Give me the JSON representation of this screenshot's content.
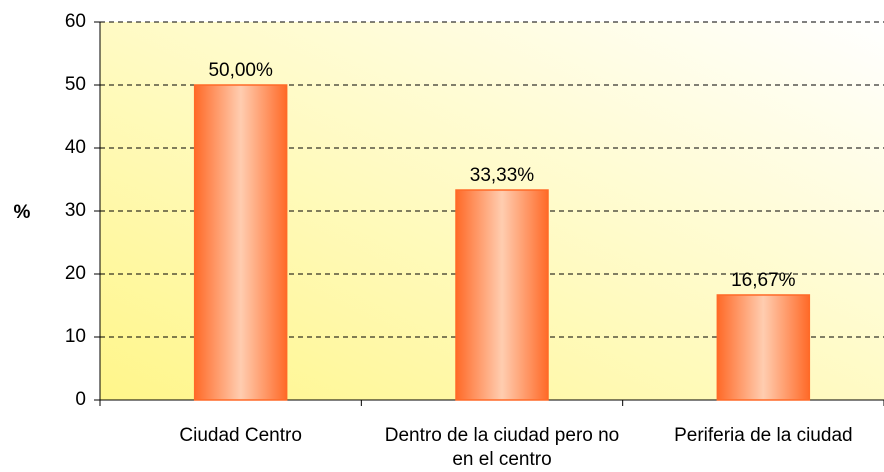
{
  "chart_data": {
    "type": "bar",
    "ylabel": "%",
    "categories": [
      "Ciudad Centro",
      "Dentro de la ciudad pero no en el centro",
      "Periferia de la ciudad"
    ],
    "values": [
      50,
      33.33,
      16.67
    ],
    "value_labels": [
      "50,00%",
      "33,33%",
      "16,67%"
    ],
    "color": "#ff6a28",
    "ylim": [
      0,
      60
    ],
    "yticks": [
      0,
      10,
      20,
      30,
      40,
      50,
      60
    ],
    "grid": true
  }
}
